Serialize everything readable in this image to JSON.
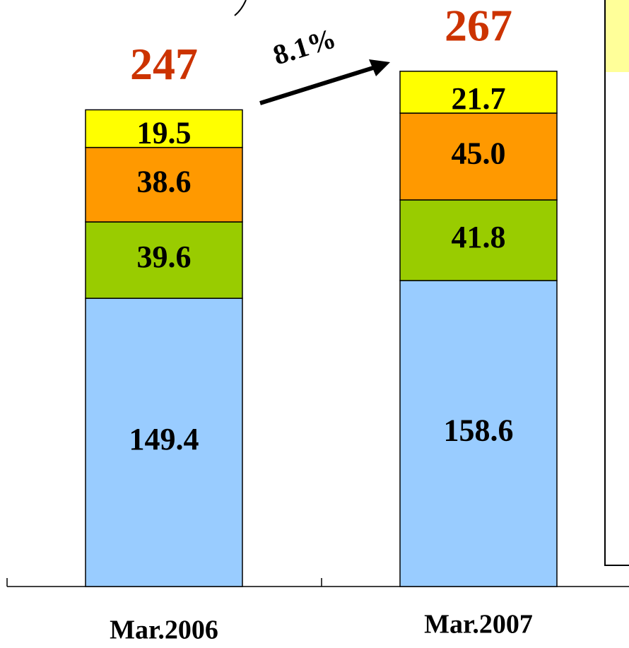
{
  "chart_data": {
    "type": "stacked_bar",
    "categories": [
      "Mar.2006",
      "Mar.2007"
    ],
    "series": [
      {
        "color": "#99ccff",
        "values": [
          149.4,
          158.6
        ]
      },
      {
        "color": "#99cc00",
        "values": [
          39.6,
          41.8
        ]
      },
      {
        "color": "#ff9900",
        "values": [
          38.6,
          45.0
        ],
        "value_labels": [
          "38.6",
          "45.0"
        ]
      },
      {
        "color": "#ffff00",
        "values": [
          19.5,
          21.7
        ]
      }
    ],
    "totals": [
      247,
      267
    ],
    "total_color": "#cc3300",
    "annotation": "8.1%",
    "ylim": [
      0,
      300
    ]
  }
}
